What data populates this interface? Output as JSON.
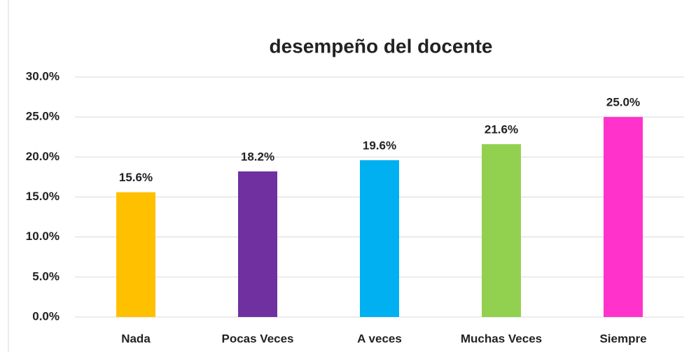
{
  "chart_data": {
    "type": "bar",
    "title": "desempeño del docente",
    "categories": [
      "Nada",
      "Pocas Veces",
      "A veces",
      "Muchas Veces",
      "Siempre"
    ],
    "values": [
      15.6,
      18.2,
      19.6,
      21.6,
      25.0
    ],
    "value_labels": [
      "15.6%",
      "18.2%",
      "19.6%",
      "21.6%",
      "25.0%"
    ],
    "colors": [
      "#FFC000",
      "#7030A0",
      "#00B0F0",
      "#92D050",
      "#FF33CC"
    ],
    "ylim": [
      0,
      30
    ],
    "yticks": [
      {
        "value": 0,
        "label": "0.0%"
      },
      {
        "value": 5,
        "label": "5.0%"
      },
      {
        "value": 10,
        "label": "10.0%"
      },
      {
        "value": 15,
        "label": "15.0%"
      },
      {
        "value": 20,
        "label": "20.0%"
      },
      {
        "value": 25,
        "label": "25.0%"
      },
      {
        "value": 30,
        "label": "30.0%"
      }
    ],
    "grid": true
  }
}
